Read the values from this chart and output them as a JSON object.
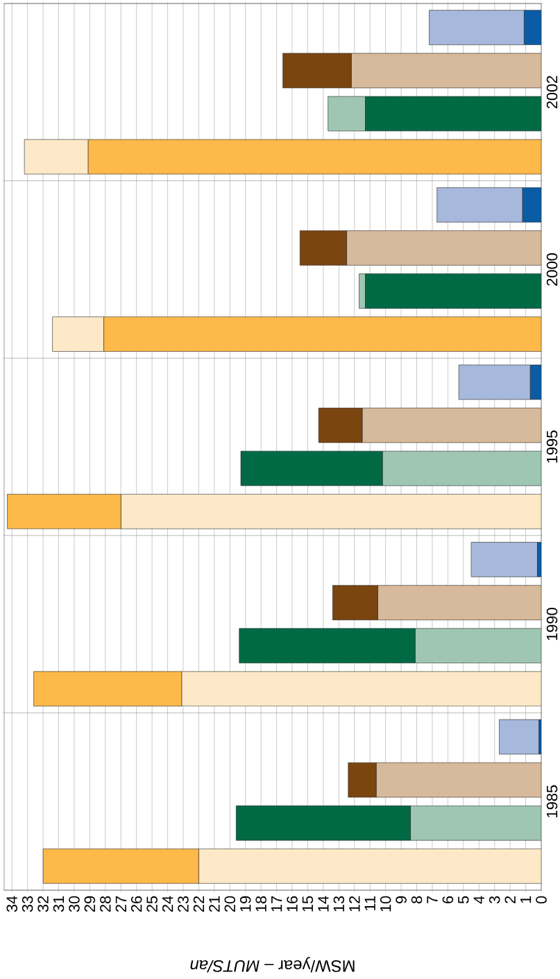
{
  "chart_data": {
    "type": "bar",
    "orientation": "horizontal",
    "categories": [
      "2002",
      "2000",
      "1995",
      "1990",
      "1985"
    ],
    "xlabel": "MSW/year – *MUTS/an*",
    "xlim": [
      34.5,
      0
    ],
    "xticks": [
      0,
      1,
      2,
      3,
      4,
      5,
      6,
      7,
      8,
      9,
      10,
      11,
      12,
      13,
      14,
      15,
      16,
      17,
      18,
      19,
      20,
      21,
      22,
      23,
      24,
      25,
      26,
      27,
      28,
      29,
      30,
      31,
      32,
      33,
      34
    ],
    "grid": true,
    "series": [
      {
        "color": "#fde9c8",
        "base": [
          29.1,
          28.1,
          0,
          0,
          0
        ],
        "values": [
          4.1,
          3.3,
          27.0,
          23.1,
          22.0
        ]
      },
      {
        "color": "#fdb94a",
        "base": [
          0,
          0,
          27.0,
          23.1,
          22.0
        ],
        "values": [
          29.1,
          28.1,
          7.3,
          9.5,
          10.0
        ]
      },
      {
        "color": "#9fc6b2",
        "base": [
          11.3,
          11.3,
          0,
          0,
          0
        ],
        "values": [
          2.4,
          0.4,
          10.2,
          8.1,
          8.4
        ]
      },
      {
        "color": "#006a45",
        "base": [
          0,
          0,
          10.2,
          8.1,
          8.4
        ],
        "values": [
          11.3,
          11.3,
          9.1,
          11.3,
          11.2
        ]
      },
      {
        "color": "#d7b99b",
        "base": [
          0,
          0,
          0,
          0,
          0
        ],
        "values": [
          12.2,
          12.5,
          11.5,
          10.5,
          10.6
        ]
      },
      {
        "color": "#7b4510",
        "base": [
          12.2,
          12.5,
          11.5,
          10.5,
          10.6
        ],
        "values": [
          4.4,
          3.0,
          2.8,
          2.9,
          1.8
        ]
      },
      {
        "color": "#a6b8db",
        "base": [
          1.1,
          1.2,
          0.7,
          0.25,
          0.15
        ],
        "values": [
          6.1,
          5.5,
          4.6,
          4.25,
          2.55
        ]
      },
      {
        "color": "#0a5ca5",
        "base": [
          0,
          0,
          0,
          0,
          0
        ],
        "values": [
          1.1,
          1.2,
          0.7,
          0.25,
          0.15
        ]
      }
    ]
  }
}
